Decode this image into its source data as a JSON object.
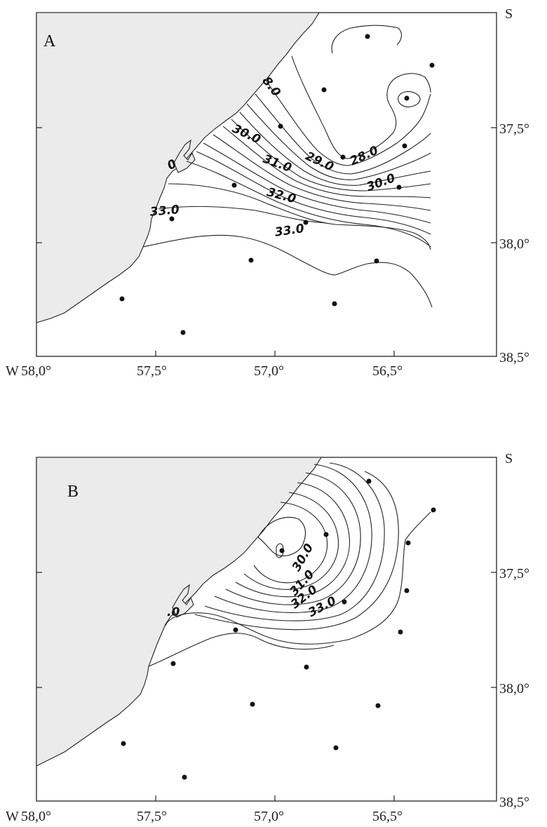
{
  "map": {
    "south_hemisphere_label": "S",
    "west_prefix": "W",
    "lon_labels": [
      "58,0°",
      "57,5°",
      "57,0°",
      "56,5°"
    ],
    "lat_labels": [
      "37,5°",
      "38,0°",
      "38,5°"
    ]
  },
  "panels": [
    {
      "letter": "A",
      "isohaline_labels": [
        "8.0",
        "30.0",
        "29.0",
        "28.0",
        "31.0",
        "30.0",
        "32.0",
        "33.0",
        "33.0",
        "0"
      ]
    },
    {
      "letter": "B",
      "isohaline_labels": [
        "30.0",
        "31.0",
        "32.0",
        "33.0",
        ".0"
      ]
    }
  ],
  "colors": {
    "land": "#ebebeb",
    "lines": "#222222",
    "stations": "#111111"
  }
}
